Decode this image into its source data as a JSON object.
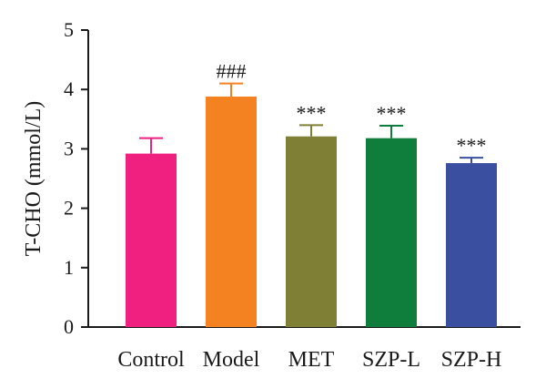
{
  "chart_data": {
    "type": "bar",
    "title": "",
    "xlabel": "",
    "ylabel": "T-CHO (mmol/L)",
    "ylim": [
      0,
      5
    ],
    "yticks": [
      "0",
      "1",
      "2",
      "3",
      "4",
      "5"
    ],
    "grid": false,
    "categories": [
      "Control",
      "Model",
      "MET",
      "SZP-L",
      "SZP-H"
    ],
    "values": [
      2.92,
      3.88,
      3.21,
      3.18,
      2.76
    ],
    "errors": [
      0.26,
      0.22,
      0.19,
      0.21,
      0.09
    ],
    "annotations": [
      "",
      "###",
      "***",
      "***",
      "***"
    ],
    "colors": [
      "#ef2080",
      "#f58220",
      "#7f8035",
      "#0f7e3c",
      "#3a4fa0"
    ]
  }
}
